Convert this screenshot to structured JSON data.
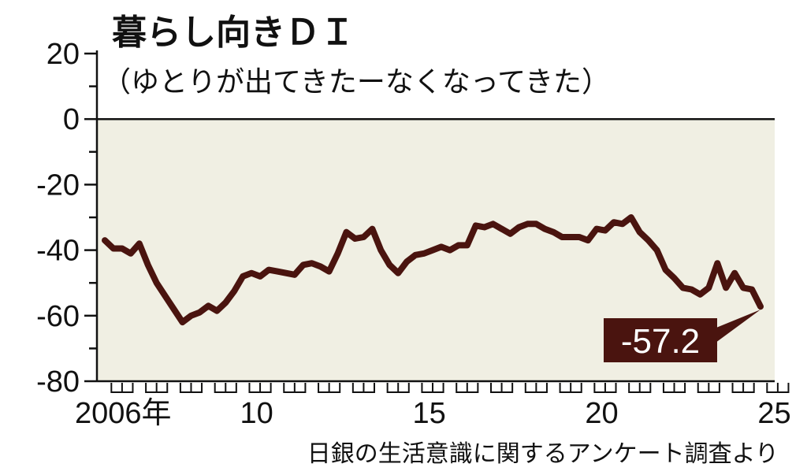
{
  "colors": {
    "plot_bg": "#f0efe3",
    "line": "#4a140f",
    "callout_bg": "#4a140f",
    "axis": "#111111"
  },
  "chart_data": {
    "type": "line",
    "title": "暮らし向きＤＩ",
    "subtitle": "（ゆとりが出てきたーなくなってきた）",
    "source": "日銀の生活意識に関するアンケート調査より",
    "ylim": [
      -80,
      20
    ],
    "yticks": [
      "20",
      "0",
      "-20",
      "-40",
      "-60",
      "-80"
    ],
    "xlim": [
      2006,
      2025.25
    ],
    "xticks": [
      {
        "value": 2006,
        "label": "2006年"
      },
      {
        "value": 2010,
        "label": "10"
      },
      {
        "value": 2015,
        "label": "15"
      },
      {
        "value": 2020,
        "label": "20"
      },
      {
        "value": 2025,
        "label": "25"
      }
    ],
    "grid": false,
    "series": [
      {
        "x": [
          2006.0,
          2006.25,
          2006.5,
          2006.75,
          2007.0,
          2007.25,
          2007.5,
          2007.75,
          2008.0,
          2008.25,
          2008.5,
          2008.75,
          2009.0,
          2009.25,
          2009.5,
          2009.75,
          2010.0,
          2010.25,
          2010.5,
          2010.75,
          2011.0,
          2011.25,
          2011.5,
          2011.75,
          2012.0,
          2012.25,
          2012.5,
          2012.75,
          2013.0,
          2013.25,
          2013.5,
          2013.75,
          2014.0,
          2014.25,
          2014.5,
          2014.75,
          2015.0,
          2015.25,
          2015.5,
          2015.75,
          2016.0,
          2016.25,
          2016.5,
          2016.75,
          2017.0,
          2017.25,
          2017.5,
          2017.75,
          2018.0,
          2018.25,
          2018.5,
          2018.75,
          2019.0,
          2019.25,
          2019.5,
          2019.75,
          2020.0,
          2020.25,
          2020.5,
          2020.75,
          2021.0,
          2021.25,
          2021.5,
          2021.75,
          2022.0,
          2022.25,
          2022.5,
          2022.75,
          2023.0,
          2023.25,
          2023.5,
          2023.75,
          2024.0,
          2024.25,
          2024.5,
          2024.75,
          2025.0
        ],
        "values": [
          -37.0,
          -39.5,
          -39.5,
          -41.0,
          -38.0,
          -44.5,
          -50.0,
          -54.0,
          -58.0,
          -62.0,
          -60.0,
          -59.0,
          -57.0,
          -58.5,
          -56.0,
          -52.5,
          -48.0,
          -47.0,
          -48.0,
          -46.0,
          -46.5,
          -47.0,
          -47.5,
          -44.5,
          -44.0,
          -45.0,
          -46.5,
          -41.0,
          -34.5,
          -36.5,
          -36.0,
          -33.5,
          -40.0,
          -44.5,
          -47.0,
          -43.5,
          -41.5,
          -41.0,
          -40.0,
          -39.0,
          -40.0,
          -38.5,
          -38.5,
          -32.5,
          -33.0,
          -32.0,
          -33.5,
          -35.0,
          -33.0,
          -32.0,
          -32.0,
          -33.5,
          -34.5,
          -36.0,
          -36.0,
          -36.0,
          -37.0,
          -33.5,
          -34.0,
          -31.5,
          -32.0,
          -30.0,
          -34.5,
          -37.0,
          -40.0,
          -46.0,
          -48.5,
          -51.5,
          -52.0,
          -53.5,
          -51.5,
          -44.0,
          -51.5,
          -47.0,
          -51.5,
          -52.0,
          -57.2
        ]
      }
    ],
    "annotations": [
      {
        "text": "-57.2",
        "x": 2025.0,
        "y": -57.2
      }
    ]
  }
}
